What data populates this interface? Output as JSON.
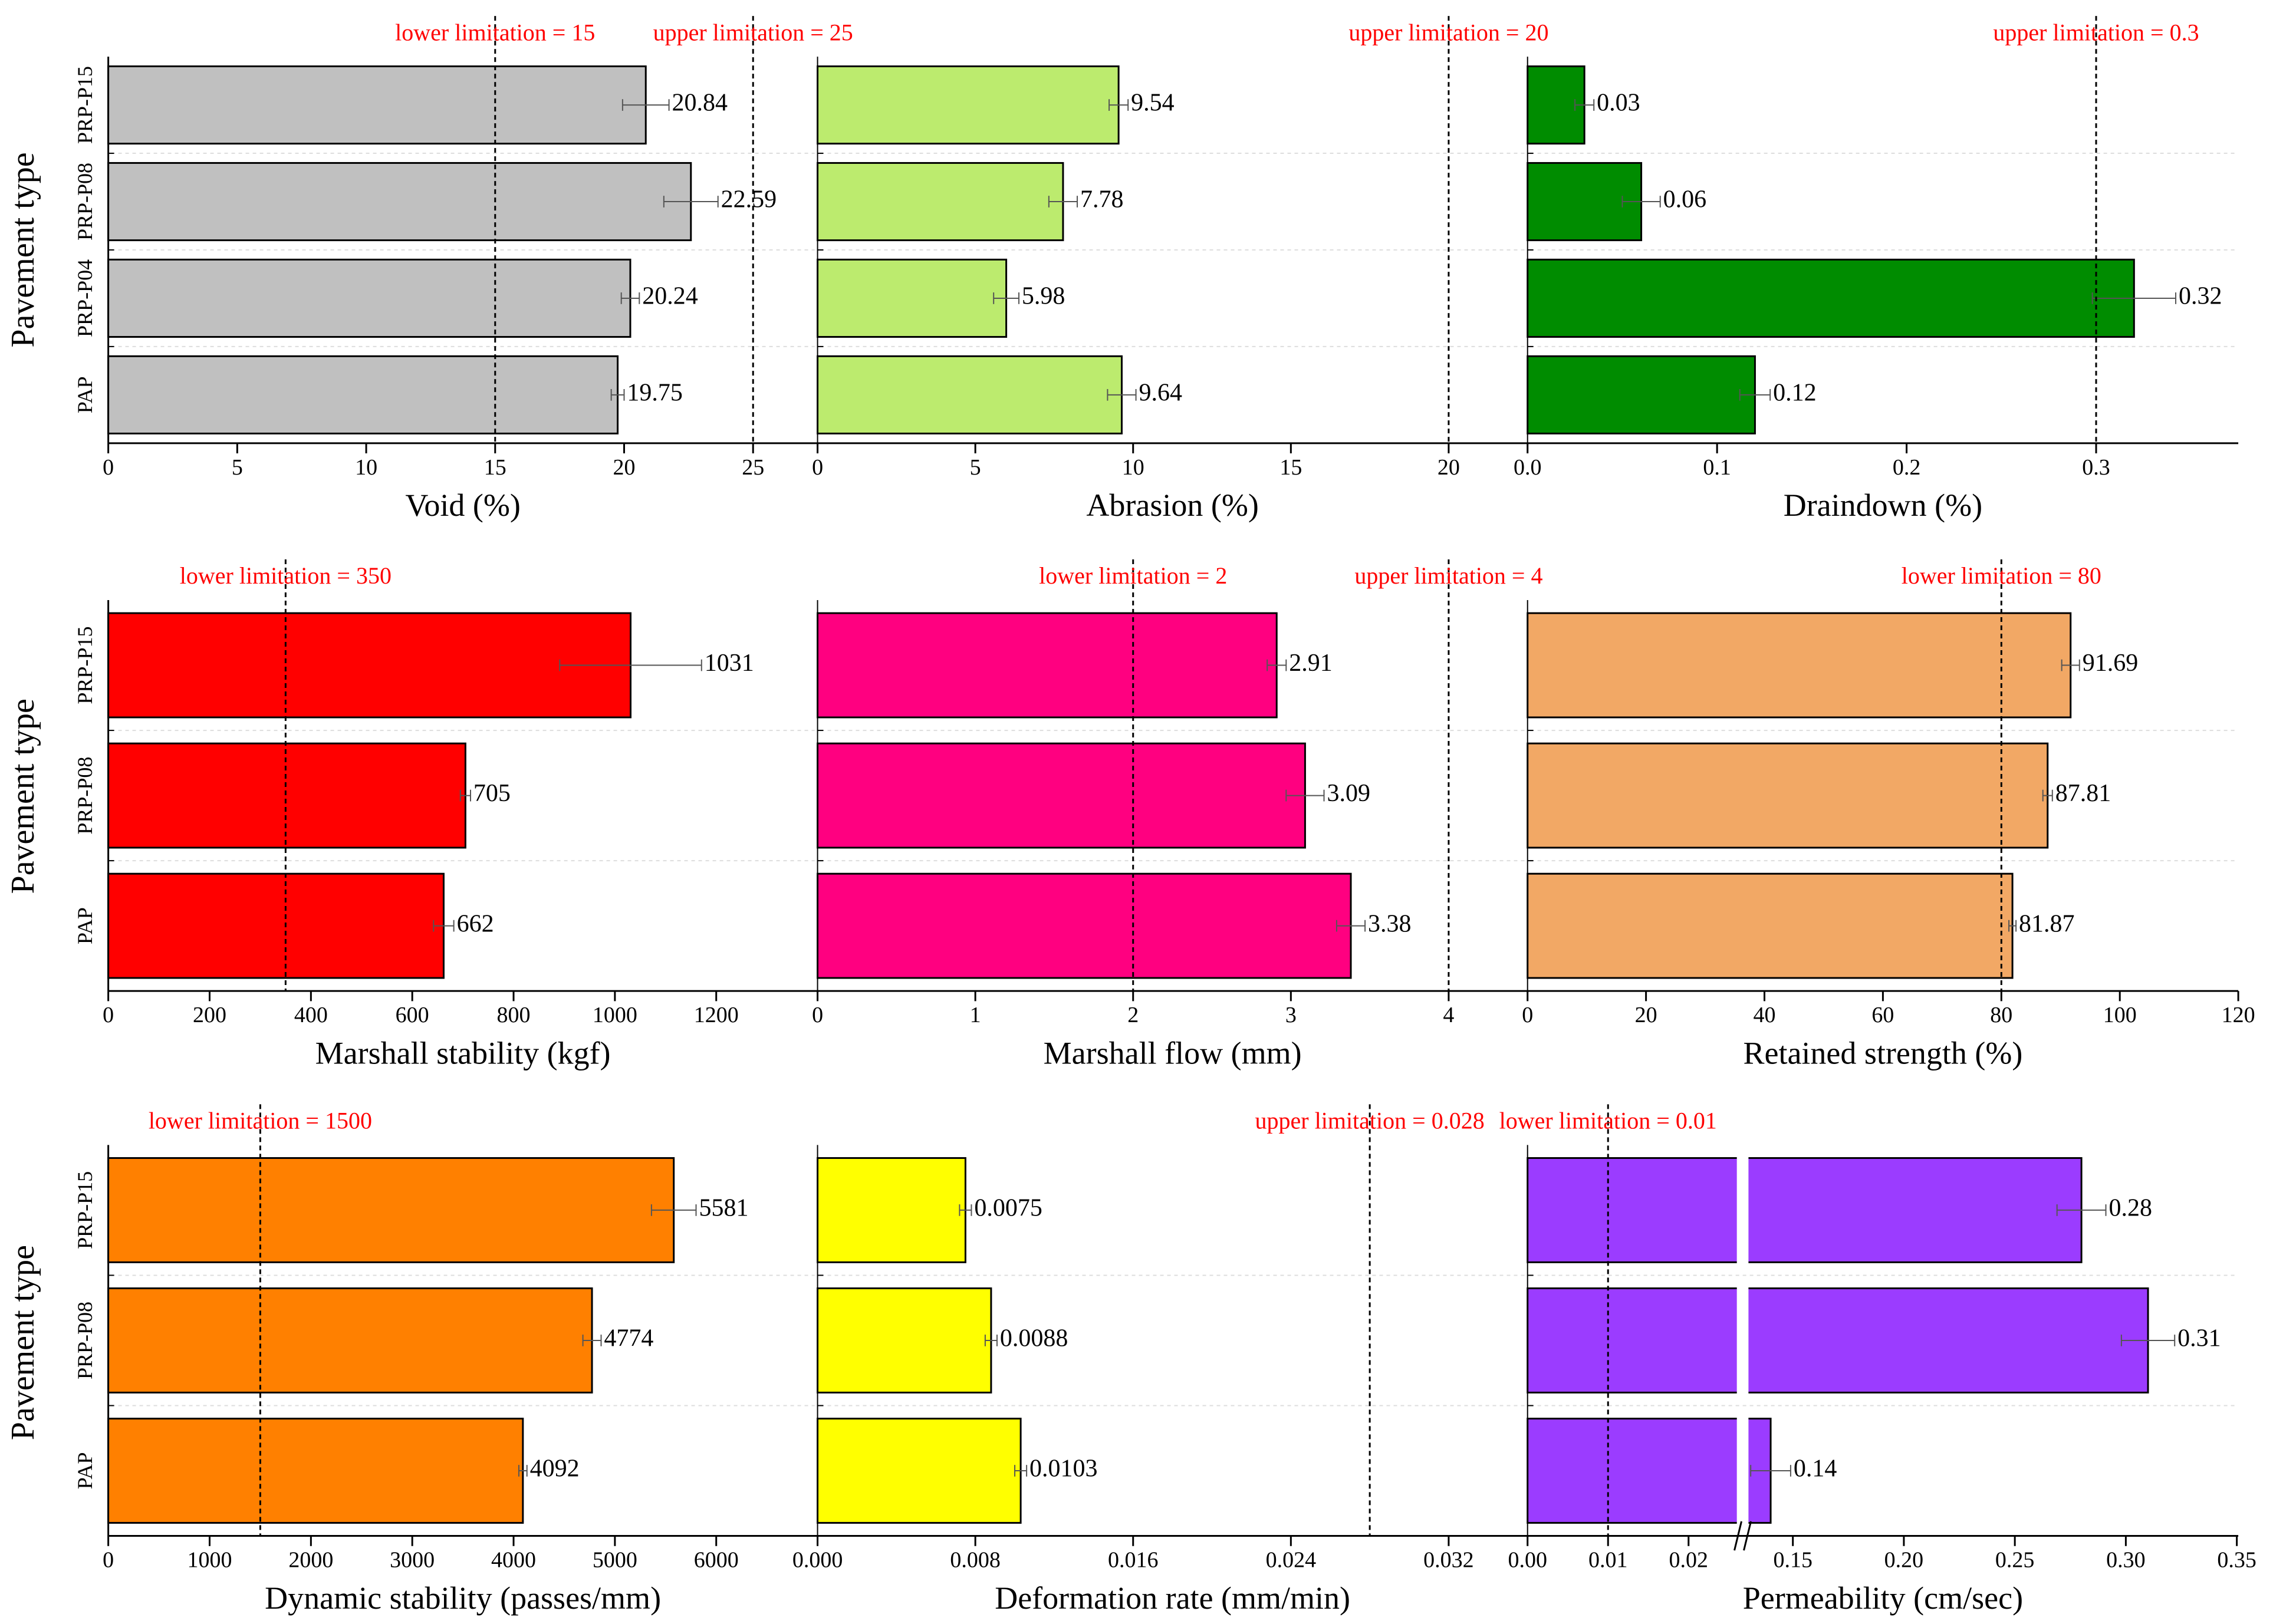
{
  "figure": {
    "ylabel": "Pavement type"
  },
  "chart_data": [
    {
      "type": "bar",
      "orientation": "horizontal",
      "xlabel": "Void (%)",
      "categories": [
        "PRP-P15",
        "PRP-P08",
        "PRP-P04",
        "PAP"
      ],
      "values": [
        20.84,
        22.59,
        20.24,
        19.75
      ],
      "value_labels": [
        "20.84",
        "22.59",
        "20.24",
        "19.75"
      ],
      "errors": [
        0.9,
        1.05,
        0.35,
        0.25
      ],
      "xlim": [
        0,
        27.5
      ],
      "xticks": [
        0,
        5,
        10,
        15,
        20,
        25
      ],
      "xtick_labels": [
        "0",
        "5",
        "10",
        "15",
        "20",
        "25"
      ],
      "color": "#c0c0c0",
      "limits": [
        {
          "value": 15,
          "label": "lower limitation = 15"
        },
        {
          "value": 25,
          "label": "upper limitation = 25"
        }
      ]
    },
    {
      "type": "bar",
      "orientation": "horizontal",
      "xlabel": "Abrasion (%)",
      "categories": [
        "PRP-P15",
        "PRP-P08",
        "PRP-P04",
        "PAP"
      ],
      "values": [
        9.54,
        7.78,
        5.98,
        9.64
      ],
      "value_labels": [
        "9.54",
        "7.78",
        "5.98",
        "9.64"
      ],
      "errors": [
        0.3,
        0.45,
        0.4,
        0.45
      ],
      "xlim": [
        0,
        22.5
      ],
      "xticks": [
        0,
        5,
        10,
        15,
        20
      ],
      "xtick_labels": [
        "0",
        "5",
        "10",
        "15",
        "20"
      ],
      "color": "#bceb6e",
      "limits": [
        {
          "value": 20,
          "label": "upper limitation = 20"
        }
      ]
    },
    {
      "type": "bar",
      "orientation": "horizontal",
      "xlabel": "Draindown (%)",
      "categories": [
        "PRP-P15",
        "PRP-P08",
        "PRP-P04",
        "PAP"
      ],
      "values": [
        0.03,
        0.06,
        0.32,
        0.12
      ],
      "value_labels": [
        "0.03",
        "0.06",
        "0.32",
        "0.12"
      ],
      "errors": [
        0.005,
        0.01,
        0.022,
        0.008
      ],
      "xlim": [
        0,
        0.375
      ],
      "xticks": [
        0,
        0.1,
        0.2,
        0.3
      ],
      "xtick_labels": [
        "0.0",
        "0.1",
        "0.2",
        "0.3"
      ],
      "color": "#008c00",
      "limits": [
        {
          "value": 0.3,
          "label": "upper limitation = 0.3"
        }
      ]
    },
    {
      "type": "bar",
      "orientation": "horizontal",
      "xlabel": "Marshall stability (kgf)",
      "categories": [
        "PRP-P15",
        "PRP-P08",
        "PAP"
      ],
      "values": [
        1031,
        705,
        662
      ],
      "value_labels": [
        "1031",
        "705",
        "662"
      ],
      "errors": [
        140,
        10,
        20
      ],
      "xlim": [
        0,
        1400
      ],
      "xticks": [
        0,
        200,
        400,
        600,
        800,
        1000,
        1200
      ],
      "xtick_labels": [
        "0",
        "200",
        "400",
        "600",
        "800",
        "1000",
        "1200"
      ],
      "color": "#ff0000",
      "limits": [
        {
          "value": 350,
          "label": "lower limitation = 350"
        }
      ]
    },
    {
      "type": "bar",
      "orientation": "horizontal",
      "xlabel": "Marshall flow (mm)",
      "categories": [
        "PRP-P15",
        "PRP-P08",
        "PAP"
      ],
      "values": [
        2.91,
        3.09,
        3.38
      ],
      "value_labels": [
        "2.91",
        "3.09",
        "3.38"
      ],
      "errors": [
        0.06,
        0.12,
        0.09
      ],
      "xlim": [
        0,
        4.5
      ],
      "xticks": [
        0,
        1,
        2,
        3,
        4
      ],
      "xtick_labels": [
        "0",
        "1",
        "2",
        "3",
        "4"
      ],
      "color": "#ff0080",
      "limits": [
        {
          "value": 2,
          "label": "lower limitation = 2"
        },
        {
          "value": 4,
          "label": "upper limitation = 4"
        }
      ]
    },
    {
      "type": "bar",
      "orientation": "horizontal",
      "xlabel": "Retained strength (%)",
      "categories": [
        "PRP-P15",
        "PRP-P08",
        "PAP"
      ],
      "values": [
        91.69,
        87.81,
        81.87
      ],
      "value_labels": [
        "91.69",
        "87.81",
        "81.87"
      ],
      "errors": [
        1.5,
        0.8,
        0.6
      ],
      "xlim": [
        0,
        120
      ],
      "xticks": [
        0,
        20,
        40,
        60,
        80,
        100,
        120
      ],
      "xtick_labels": [
        "0",
        "20",
        "40",
        "60",
        "80",
        "100",
        "120"
      ],
      "color": "#f2a865",
      "limits": [
        {
          "value": 80,
          "label": "lower limitation = 80"
        }
      ]
    },
    {
      "type": "bar",
      "orientation": "horizontal",
      "xlabel": "Dynamic stability (passes/mm)",
      "categories": [
        "PRP-P15",
        "PRP-P08",
        "PAP"
      ],
      "values": [
        5581,
        4774,
        4092
      ],
      "value_labels": [
        "5581",
        "4774",
        "4092"
      ],
      "errors": [
        220,
        90,
        40
      ],
      "xlim": [
        0,
        7000
      ],
      "xticks": [
        0,
        1000,
        2000,
        3000,
        4000,
        5000,
        6000
      ],
      "xtick_labels": [
        "0",
        "1000",
        "2000",
        "3000",
        "4000",
        "5000",
        "6000"
      ],
      "color": "#ff8000",
      "limits": [
        {
          "value": 1500,
          "label": "lower limitation = 1500"
        }
      ]
    },
    {
      "type": "bar",
      "orientation": "horizontal",
      "xlabel": "Deformation rate (mm/min)",
      "categories": [
        "PRP-P15",
        "PRP-P08",
        "PAP"
      ],
      "values": [
        0.0075,
        0.0088,
        0.0103
      ],
      "value_labels": [
        "0.0075",
        "0.0088",
        "0.0103"
      ],
      "errors": [
        0.0003,
        0.0003,
        0.0003
      ],
      "xlim": [
        0,
        0.036
      ],
      "xticks": [
        0,
        0.008,
        0.016,
        0.024,
        0.032
      ],
      "xtick_labels": [
        "0.000",
        "0.008",
        "0.016",
        "0.024",
        "0.032"
      ],
      "color": "#ffff00",
      "limits": [
        {
          "value": 0.028,
          "label": "upper limitation = 0.028"
        }
      ]
    },
    {
      "type": "bar",
      "orientation": "horizontal",
      "xlabel": "Permeability (cm/sec)",
      "categories": [
        "PRP-P15",
        "PRP-P08",
        "PAP"
      ],
      "values": [
        0.28,
        0.31,
        0.14
      ],
      "value_labels": [
        "0.28",
        "0.31",
        "0.14"
      ],
      "errors": [
        0.011,
        0.012,
        0.009
      ],
      "x_axis_break": {
        "between": [
          0.026,
          0.13
        ]
      },
      "xticks": [
        0,
        0.01,
        0.02,
        0.15,
        0.2,
        0.25,
        0.3,
        0.35
      ],
      "xtick_labels": [
        "0.00",
        "0.01",
        "0.02",
        "0.15",
        "0.20",
        "0.25",
        "0.30",
        "0.35"
      ],
      "color": "#9b3cff",
      "limits": [
        {
          "value": 0.01,
          "label": "lower limitation = 0.01"
        }
      ]
    }
  ]
}
